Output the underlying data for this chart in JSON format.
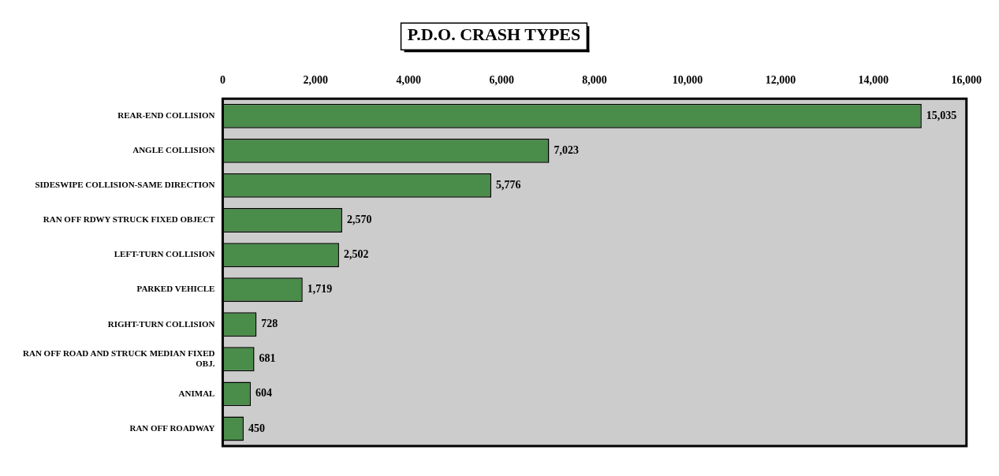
{
  "chart_data": {
    "type": "bar",
    "orientation": "horizontal",
    "title": "P.D.O. CRASH TYPES",
    "categories": [
      "REAR-END COLLISION",
      "ANGLE COLLISION",
      "SIDESWIPE COLLISION-SAME DIRECTION",
      "RAN OFF RDWY STRUCK FIXED OBJECT",
      "LEFT-TURN COLLISION",
      "PARKED VEHICLE",
      "RIGHT-TURN COLLISION",
      "RAN OFF ROAD AND STRUCK MEDIAN FIXED OBJ.",
      "ANIMAL",
      "RAN OFF ROADWAY"
    ],
    "values": [
      15035,
      7023,
      5776,
      2570,
      2502,
      1719,
      728,
      681,
      604,
      450
    ],
    "value_labels": [
      "15,035",
      "7,023",
      "5,776",
      "2,570",
      "2,502",
      "1,719",
      "728",
      "681",
      "604",
      "450"
    ],
    "color": "#4a8c4a",
    "xlim": [
      0,
      16000
    ],
    "xticks": [
      0,
      {
        "value": 2000,
        "label": "2,000"
      },
      {
        "value": 4000,
        "label": "4,000"
      },
      {
        "value": 6000,
        "label": "6,000"
      },
      {
        "value": 8000,
        "label": "8,000"
      },
      {
        "value": 10000,
        "label": "10,000"
      },
      {
        "value": 12000,
        "label": "12,000"
      },
      {
        "value": 14000,
        "label": "14,000"
      },
      {
        "value": 16000,
        "label": "16,000"
      }
    ],
    "grid": false,
    "legend": false
  }
}
